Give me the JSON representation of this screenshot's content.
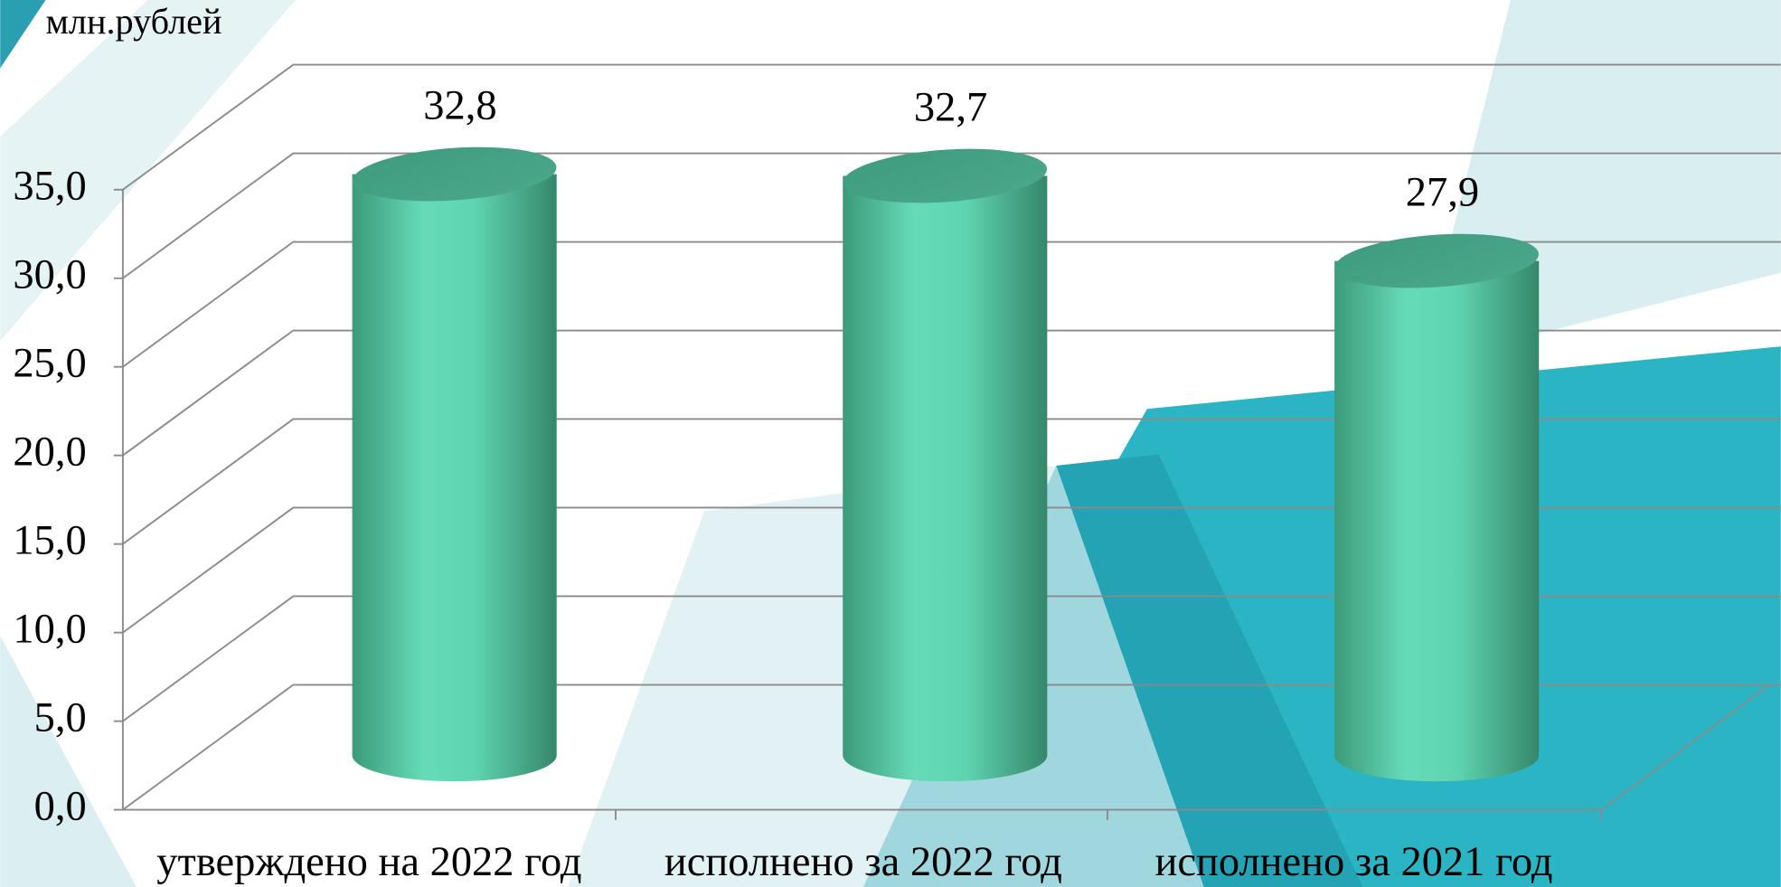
{
  "chart_data": {
    "type": "cylinder-bar",
    "y_label": "млн.рублей",
    "categories": [
      "утверждено на 2022 год",
      "исполнено за 2022 год",
      "исполнено за 2021 год"
    ],
    "values": [
      32.8,
      32.7,
      27.9
    ],
    "value_labels": [
      "32,8",
      "32,7",
      "27,9"
    ],
    "color": "#5fd6b3",
    "ylim": [
      0,
      35
    ],
    "yticks": [
      {
        "value": 0,
        "label": "0,0"
      },
      {
        "value": 5,
        "label": "5,0"
      },
      {
        "value": 10,
        "label": "10,0"
      },
      {
        "value": 15,
        "label": "15,0"
      },
      {
        "value": 20,
        "label": "20,0"
      },
      {
        "value": 25,
        "label": "25,0"
      },
      {
        "value": 30,
        "label": "30,0"
      },
      {
        "value": 35,
        "label": "35,0"
      }
    ],
    "grid": true
  }
}
